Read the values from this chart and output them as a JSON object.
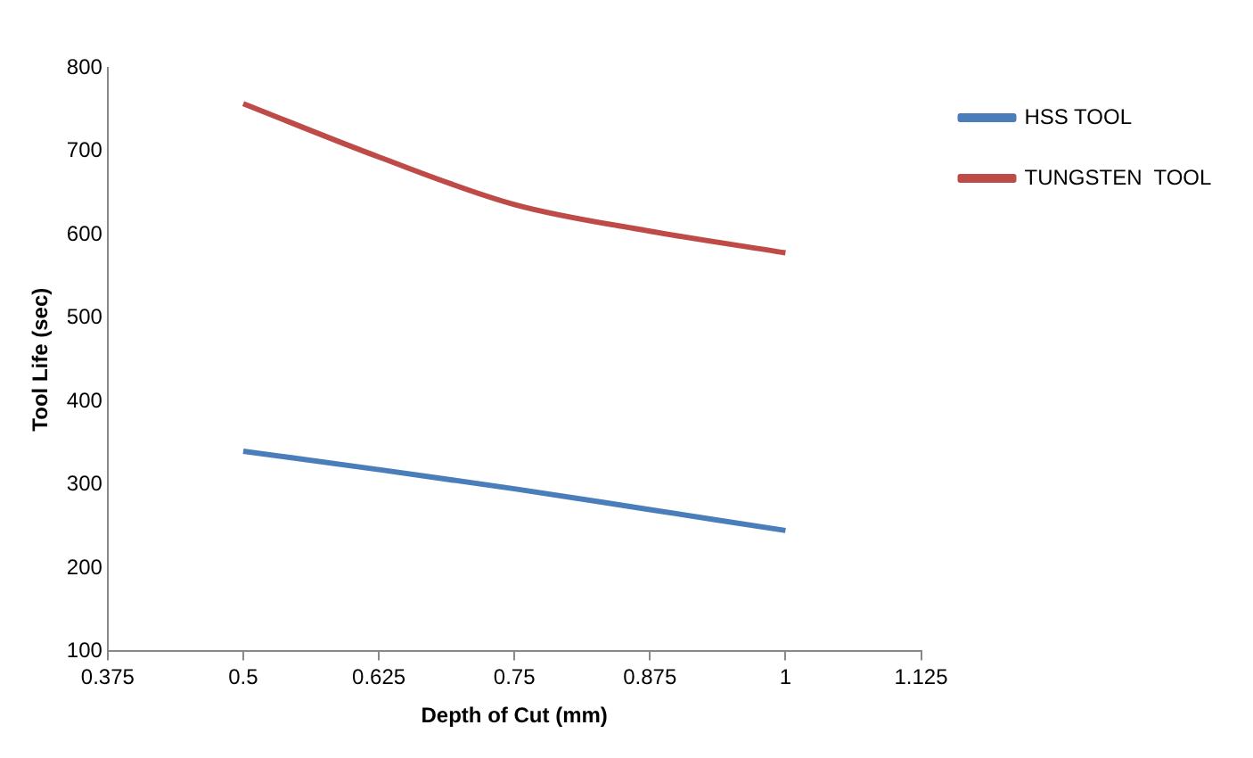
{
  "chart_data": {
    "type": "line",
    "xlabel": "Depth of Cut (mm)",
    "ylabel": "Tool Life (sec)",
    "x": [
      0.5,
      0.625,
      0.75,
      0.875,
      1
    ],
    "series": [
      {
        "name": "HSS TOOL",
        "color": "#4a7ebb",
        "values": [
          340,
          318,
          295,
          270,
          245
        ]
      },
      {
        "name": "TUNGSTEN  TOOL",
        "color": "#be4b48",
        "values": [
          757,
          693,
          636,
          604,
          578
        ]
      }
    ],
    "xlim": [
      0.375,
      1.125
    ],
    "xticks": [
      0.375,
      0.5,
      0.625,
      0.75,
      0.875,
      1,
      1.125
    ],
    "ylim": [
      100,
      800
    ],
    "yticks": [
      100,
      200,
      300,
      400,
      500,
      600,
      700,
      800
    ],
    "grid": false,
    "legend": "right",
    "marker": "none",
    "line_style": "solid"
  }
}
